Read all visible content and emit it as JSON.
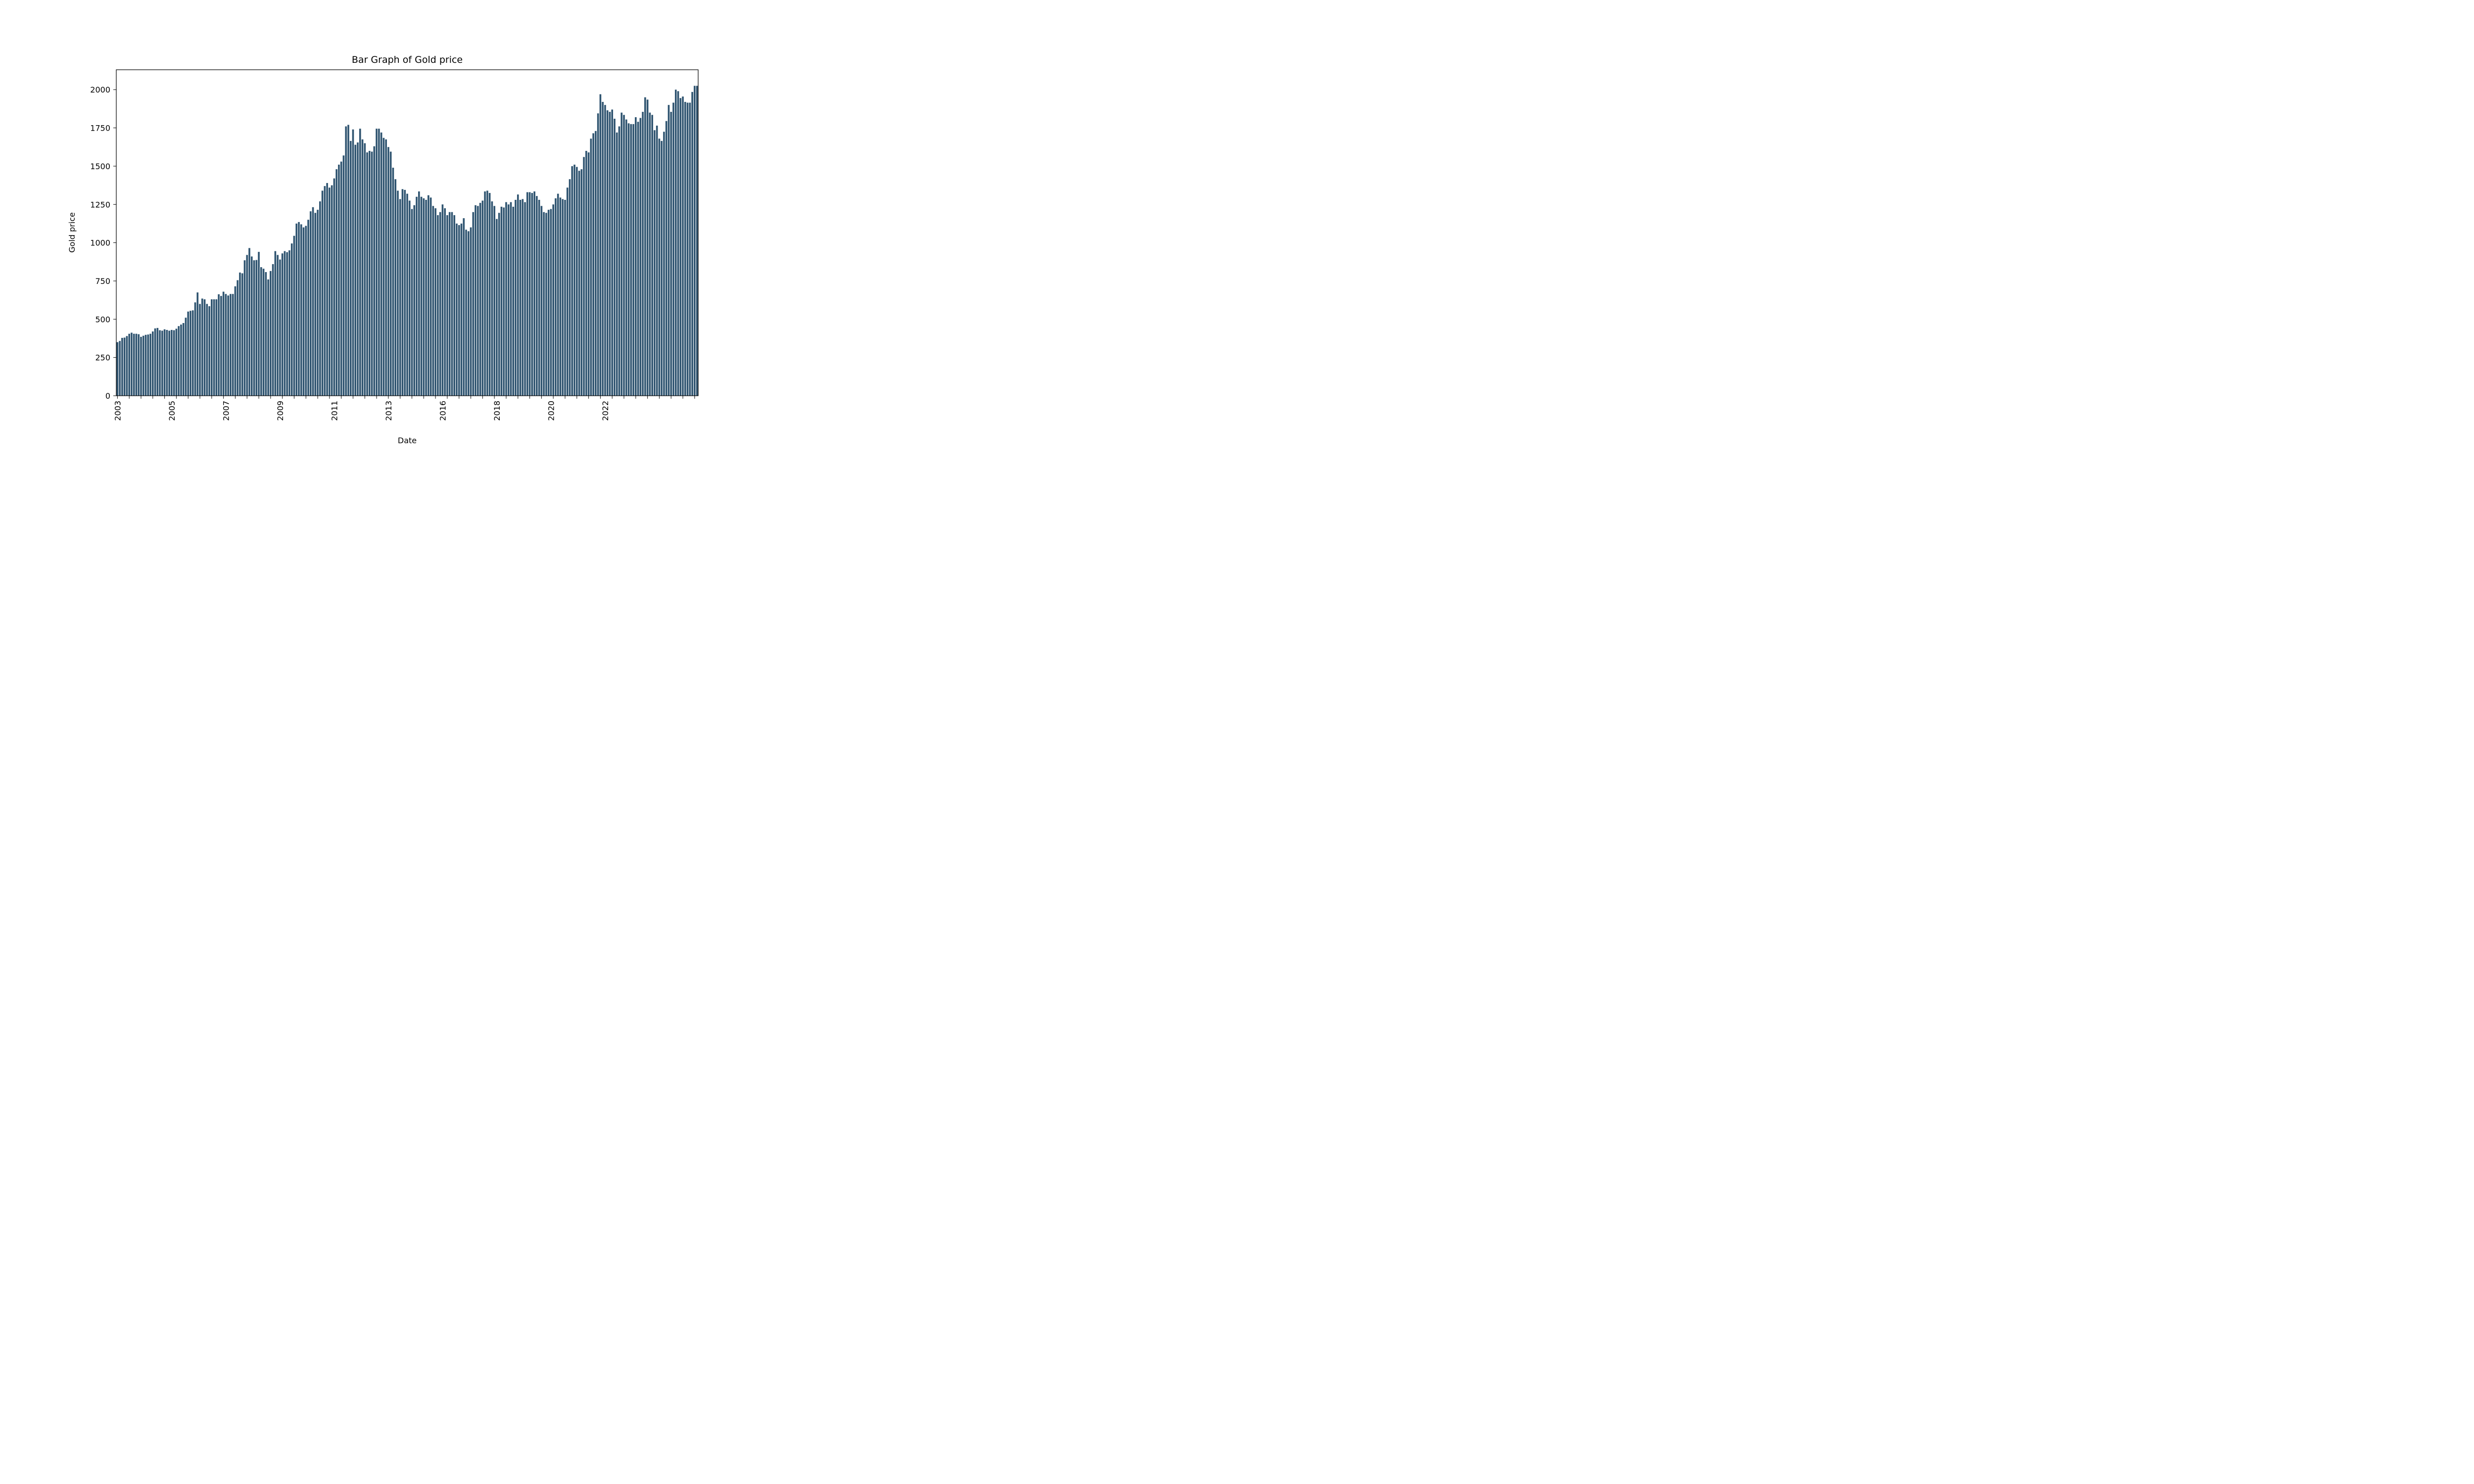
{
  "chart_data": {
    "type": "bar",
    "title": "Bar Graph of Gold price",
    "xlabel": "Date",
    "ylabel": "Gold price",
    "ylim": [
      0,
      2130
    ],
    "yticks": [
      0,
      250,
      500,
      750,
      1000,
      1250,
      1500,
      1750,
      2000
    ],
    "xtick_labels": [
      "2003",
      "2005",
      "2007",
      "2009",
      "2011",
      "2013",
      "2016",
      "2018",
      "2020",
      "2022"
    ],
    "xtick_label_bar_index": [
      0,
      23,
      46,
      69,
      92,
      115,
      138,
      161,
      184,
      207
    ],
    "minor_tick_every_bars": 5,
    "bar_color": "#2f5470",
    "grid": false,
    "values": [
      350,
      358,
      378,
      380,
      390,
      405,
      412,
      405,
      405,
      402,
      385,
      392,
      398,
      400,
      405,
      420,
      440,
      443,
      428,
      425,
      434,
      430,
      425,
      430,
      428,
      438,
      455,
      465,
      475,
      510,
      550,
      555,
      558,
      610,
      675,
      600,
      635,
      630,
      600,
      585,
      630,
      630,
      630,
      663,
      652,
      680,
      665,
      655,
      665,
      665,
      715,
      755,
      805,
      800,
      885,
      920,
      965,
      910,
      885,
      887,
      940,
      840,
      830,
      808,
      760,
      815,
      860,
      945,
      920,
      890,
      930,
      945,
      938,
      950,
      995,
      1045,
      1125,
      1135,
      1120,
      1100,
      1110,
      1150,
      1205,
      1232,
      1195,
      1215,
      1270,
      1340,
      1370,
      1390,
      1360,
      1375,
      1420,
      1480,
      1510,
      1530,
      1570,
      1760,
      1770,
      1665,
      1740,
      1640,
      1655,
      1745,
      1675,
      1650,
      1590,
      1600,
      1595,
      1630,
      1745,
      1745,
      1720,
      1685,
      1675,
      1625,
      1595,
      1490,
      1415,
      1340,
      1285,
      1350,
      1345,
      1320,
      1275,
      1220,
      1245,
      1300,
      1335,
      1300,
      1290,
      1280,
      1310,
      1295,
      1240,
      1225,
      1180,
      1200,
      1250,
      1225,
      1180,
      1200,
      1200,
      1180,
      1125,
      1115,
      1125,
      1160,
      1085,
      1075,
      1100,
      1200,
      1245,
      1240,
      1260,
      1275,
      1335,
      1340,
      1325,
      1270,
      1240,
      1155,
      1195,
      1235,
      1230,
      1265,
      1250,
      1265,
      1235,
      1280,
      1315,
      1280,
      1285,
      1265,
      1330,
      1330,
      1325,
      1335,
      1305,
      1280,
      1240,
      1200,
      1195,
      1215,
      1220,
      1250,
      1290,
      1320,
      1295,
      1285,
      1280,
      1360,
      1415,
      1500,
      1510,
      1495,
      1470,
      1480,
      1560,
      1600,
      1590,
      1680,
      1715,
      1730,
      1845,
      1970,
      1920,
      1900,
      1865,
      1855,
      1870,
      1810,
      1720,
      1760,
      1850,
      1835,
      1805,
      1780,
      1775,
      1775,
      1820,
      1790,
      1815,
      1855,
      1950,
      1935,
      1850,
      1835,
      1735,
      1765,
      1680,
      1665,
      1725,
      1795,
      1900,
      1855,
      1915,
      2000,
      1990,
      1945,
      1955,
      1920,
      1915,
      1915,
      1985,
      2025,
      2025
    ]
  }
}
